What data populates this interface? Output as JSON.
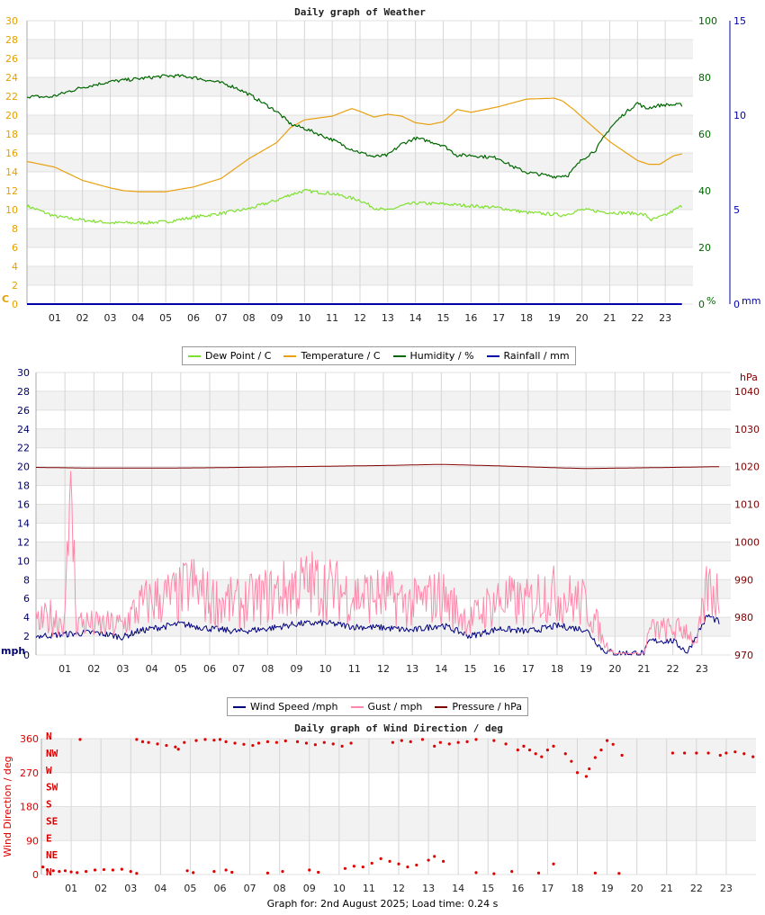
{
  "chart_data": [
    {
      "type": "line",
      "title": "Daily graph of Weather",
      "x_labels": [
        "01",
        "02",
        "03",
        "04",
        "05",
        "06",
        "07",
        "08",
        "09",
        "10",
        "11",
        "12",
        "13",
        "14",
        "15",
        "16",
        "17",
        "18",
        "19",
        "20",
        "21",
        "22",
        "23"
      ],
      "left_axis": {
        "unit_label": "C",
        "ticks": [
          0,
          2,
          4,
          6,
          8,
          10,
          12,
          14,
          16,
          18,
          20,
          22,
          24,
          26,
          28,
          30
        ],
        "range": [
          0,
          30
        ],
        "color": "#e6a000"
      },
      "right_axis_1": {
        "unit_label": "%",
        "ticks": [
          0,
          20,
          40,
          60,
          80,
          100
        ],
        "range": [
          0,
          100
        ],
        "color": "#006600"
      },
      "right_axis_2": {
        "unit_label": "mm",
        "ticks": [
          0,
          5,
          10,
          15
        ],
        "range": [
          0,
          15
        ],
        "color": "#0000aa"
      },
      "grid": true,
      "legend_position": "bottom",
      "series": [
        {
          "name": "Dew Point / C",
          "axis": "left",
          "color": "#7fe030",
          "x": [
            0,
            1,
            2,
            3,
            4,
            5,
            6,
            7,
            8,
            9,
            9.5,
            10,
            11,
            12,
            12.5,
            13,
            13.5,
            14,
            15,
            16,
            17,
            18,
            19,
            19.3,
            20,
            21,
            22,
            22.3,
            22.5,
            23,
            23.6
          ],
          "y": [
            10.4,
            9.3,
            8.9,
            8.6,
            8.6,
            8.7,
            9.2,
            9.6,
            10.1,
            11.0,
            11.6,
            12.0,
            11.7,
            11.0,
            10.2,
            9.9,
            10.4,
            10.7,
            10.6,
            10.4,
            10.2,
            9.7,
            9.5,
            9.4,
            10.0,
            9.7,
            9.6,
            9.4,
            8.9,
            9.4,
            10.4
          ]
        },
        {
          "name": "Temperature / C",
          "axis": "left",
          "color": "#e8a010",
          "x": [
            0,
            1,
            2,
            3,
            3.5,
            4,
            5,
            6,
            7,
            8,
            9,
            9.5,
            10,
            11,
            11.7,
            12,
            12.5,
            13,
            13.5,
            14,
            14.5,
            15,
            15.5,
            16,
            17,
            18,
            19,
            19.3,
            19.7,
            20,
            21,
            22,
            22.4,
            22.8,
            23.3,
            23.6
          ],
          "y": [
            15.1,
            14.5,
            13.1,
            12.3,
            12.0,
            11.9,
            11.9,
            12.4,
            13.3,
            15.4,
            17.1,
            18.7,
            19.5,
            19.9,
            20.7,
            20.4,
            19.8,
            20.1,
            19.9,
            19.2,
            19.0,
            19.3,
            20.6,
            20.3,
            20.9,
            21.7,
            21.8,
            21.5,
            20.6,
            19.8,
            17.2,
            15.2,
            14.8,
            14.8,
            15.7,
            15.9
          ]
        },
        {
          "name": "Humidity / %",
          "axis": "right1",
          "color": "#006600",
          "x": [
            0,
            0.8,
            1,
            2,
            3,
            4,
            5,
            5.5,
            6,
            7,
            7.5,
            8,
            9,
            9.5,
            10,
            11,
            11.5,
            12,
            12.5,
            13,
            13.5,
            14,
            14.5,
            15,
            15.5,
            16,
            17,
            17.5,
            18,
            19,
            19.5,
            20,
            20.5,
            21,
            21.5,
            22,
            22.3,
            22.7,
            23,
            23.6
          ],
          "y": [
            73.3,
            73.0,
            73.5,
            76.5,
            78.5,
            79.5,
            80.5,
            80.5,
            80.0,
            78.0,
            76.5,
            74.0,
            68.0,
            63.5,
            62.0,
            58.0,
            55.5,
            53.5,
            52.0,
            52.5,
            56.5,
            58.5,
            57.5,
            56.0,
            52.5,
            52.5,
            51.5,
            48.5,
            46.5,
            45.0,
            45.5,
            51.0,
            54.5,
            62.0,
            67.0,
            71.0,
            69.0,
            70.0,
            70.3,
            70.3
          ]
        },
        {
          "name": "Rainfall / mm",
          "axis": "right2",
          "color": "#0000aa",
          "x": [
            0,
            23.6
          ],
          "y": [
            0,
            0
          ]
        }
      ]
    },
    {
      "type": "line",
      "title": "",
      "x_labels": [
        "01",
        "02",
        "03",
        "04",
        "05",
        "06",
        "07",
        "08",
        "09",
        "10",
        "11",
        "12",
        "13",
        "14",
        "15",
        "16",
        "17",
        "18",
        "19",
        "20",
        "21",
        "22",
        "23"
      ],
      "left_axis": {
        "unit_label": "mph",
        "ticks": [
          0,
          2,
          4,
          6,
          8,
          10,
          12,
          14,
          16,
          18,
          20,
          22,
          24,
          26,
          28,
          30
        ],
        "range": [
          0,
          30
        ],
        "color": "#000066"
      },
      "right_axis": {
        "unit_label": "hPa",
        "ticks": [
          970,
          980,
          990,
          1000,
          1010,
          1020,
          1030,
          1040
        ],
        "range": [
          970,
          1045
        ],
        "color": "#800000"
      },
      "grid": true,
      "legend_position": "bottom",
      "series": [
        {
          "name": "Wind Speed /mph",
          "axis": "left",
          "color": "#000080",
          "x": [
            0,
            1,
            2,
            3,
            3.5,
            4,
            5,
            6,
            7,
            8,
            9,
            10,
            11,
            12,
            13,
            14,
            15,
            16,
            17,
            18,
            19,
            19.4,
            19.6,
            20,
            21,
            21.2,
            21.6,
            22,
            22.5,
            22.8,
            23.2,
            23.6
          ],
          "y": [
            2.0,
            2.2,
            2.4,
            1.9,
            2.5,
            2.8,
            3.3,
            2.8,
            2.5,
            2.8,
            3.3,
            3.4,
            3.0,
            2.9,
            2.6,
            3.2,
            2.0,
            2.8,
            2.5,
            3.1,
            2.7,
            1.2,
            0.5,
            0.2,
            0.2,
            1.5,
            1.5,
            1.5,
            0.3,
            2.0,
            4.2,
            3.5
          ]
        },
        {
          "name": "Gust / mph",
          "axis": "left",
          "color": "#ff88aa",
          "x": [
            0,
            0.5,
            1,
            1.2,
            1.4,
            2,
            3,
            3.5,
            4,
            5,
            5.3,
            6,
            7,
            8,
            9,
            9.5,
            10,
            11,
            12,
            13,
            14,
            14.6,
            15,
            15.5,
            16,
            17,
            17.5,
            18,
            19,
            19.4,
            19.6,
            20,
            21,
            21.2,
            22,
            22.5,
            22.8,
            23.2,
            23.6
          ],
          "y": [
            3.5,
            4.5,
            4.0,
            19.5,
            4.0,
            3.5,
            3.5,
            5.5,
            6.5,
            7.0,
            8.5,
            6.5,
            6.0,
            7.0,
            8.0,
            8.5,
            8.0,
            7.0,
            7.0,
            6.0,
            7.0,
            5.0,
            4.0,
            5.5,
            6.5,
            6.0,
            7.5,
            7.0,
            6.0,
            3.5,
            1.5,
            0.2,
            0.2,
            3.0,
            3.0,
            3.0,
            1.0,
            8.0,
            7.0
          ]
        },
        {
          "name": "Pressure / hPa",
          "axis": "right",
          "color": "#800000",
          "x": [
            0,
            2,
            4,
            6,
            8,
            10,
            12,
            14,
            15,
            16,
            18,
            19,
            20,
            22,
            23.6
          ],
          "y": [
            1019.8,
            1019.6,
            1019.6,
            1019.7,
            1019.9,
            1020.1,
            1020.3,
            1020.6,
            1020.4,
            1020.2,
            1019.7,
            1019.5,
            1019.6,
            1019.8,
            1020.0
          ]
        }
      ]
    },
    {
      "type": "scatter",
      "title": "Daily graph of Wind Direction / deg",
      "ylabel": "Wind Direction / deg",
      "x_labels": [
        "01",
        "02",
        "03",
        "04",
        "05",
        "06",
        "07",
        "08",
        "09",
        "10",
        "11",
        "12",
        "13",
        "14",
        "15",
        "16",
        "17",
        "18",
        "19",
        "20",
        "21",
        "22",
        "23"
      ],
      "y_ticks": [
        0,
        90,
        180,
        270,
        360
      ],
      "compass_labels": [
        "N",
        "NW",
        "W",
        "SW",
        "S",
        "SE",
        "E",
        "NE",
        "N"
      ],
      "range": [
        0,
        360
      ],
      "grid": true,
      "series": [
        {
          "name": "Wind Direction",
          "color": "#dd0000",
          "points": [
            [
              0.05,
              20
            ],
            [
              0.2,
              12
            ],
            [
              0.4,
              10
            ],
            [
              0.6,
              8
            ],
            [
              0.8,
              10
            ],
            [
              1.0,
              7
            ],
            [
              1.2,
              5
            ],
            [
              1.5,
              8
            ],
            [
              1.8,
              12
            ],
            [
              2.1,
              13
            ],
            [
              2.4,
              12
            ],
            [
              2.7,
              14
            ],
            [
              3.0,
              8
            ],
            [
              3.2,
              3
            ],
            [
              1.3,
              358
            ],
            [
              3.2,
              358
            ],
            [
              3.4,
              352
            ],
            [
              3.6,
              350
            ],
            [
              3.9,
              346
            ],
            [
              4.2,
              342
            ],
            [
              4.5,
              338
            ],
            [
              4.6,
              332
            ],
            [
              4.8,
              350
            ],
            [
              5.2,
              355
            ],
            [
              5.5,
              358
            ],
            [
              5.8,
              356
            ],
            [
              6.0,
              358
            ],
            [
              6.2,
              352
            ],
            [
              6.5,
              348
            ],
            [
              6.8,
              345
            ],
            [
              7.1,
              342
            ],
            [
              7.3,
              348
            ],
            [
              7.6,
              352
            ],
            [
              7.9,
              350
            ],
            [
              8.2,
              354
            ],
            [
              8.6,
              352
            ],
            [
              8.9,
              348
            ],
            [
              9.2,
              344
            ],
            [
              9.5,
              350
            ],
            [
              9.8,
              346
            ],
            [
              10.1,
              340
            ],
            [
              10.4,
              348
            ],
            [
              5.1,
              5
            ],
            [
              4.9,
              10
            ],
            [
              5.8,
              8
            ],
            [
              6.2,
              12
            ],
            [
              6.4,
              6
            ],
            [
              7.6,
              4
            ],
            [
              8.1,
              8
            ],
            [
              9.0,
              12
            ],
            [
              9.3,
              6
            ],
            [
              10.2,
              16
            ],
            [
              10.5,
              22
            ],
            [
              10.8,
              20
            ],
            [
              11.1,
              30
            ],
            [
              11.4,
              42
            ],
            [
              11.7,
              35
            ],
            [
              12.0,
              28
            ],
            [
              12.3,
              20
            ],
            [
              12.6,
              25
            ],
            [
              13.0,
              38
            ],
            [
              13.2,
              48
            ],
            [
              13.5,
              35
            ],
            [
              11.8,
              350
            ],
            [
              12.1,
              355
            ],
            [
              12.4,
              352
            ],
            [
              12.8,
              358
            ],
            [
              13.2,
              340
            ],
            [
              13.4,
              350
            ],
            [
              13.7,
              346
            ],
            [
              14.0,
              350
            ],
            [
              14.3,
              352
            ],
            [
              14.6,
              358
            ],
            [
              15.2,
              355
            ],
            [
              15.6,
              346
            ],
            [
              16.0,
              330
            ],
            [
              16.2,
              340
            ],
            [
              16.4,
              330
            ],
            [
              16.6,
              320
            ],
            [
              16.8,
              312
            ],
            [
              17.0,
              330
            ],
            [
              17.2,
              340
            ],
            [
              17.6,
              320
            ],
            [
              17.8,
              300
            ],
            [
              18.0,
              270
            ],
            [
              18.3,
              260
            ],
            [
              18.4,
              280
            ],
            [
              18.6,
              310
            ],
            [
              18.8,
              330
            ],
            [
              19.0,
              355
            ],
            [
              19.2,
              345
            ],
            [
              19.5,
              316
            ],
            [
              14.6,
              5
            ],
            [
              15.2,
              2
            ],
            [
              15.8,
              8
            ],
            [
              16.7,
              4
            ],
            [
              17.2,
              28
            ],
            [
              18.6,
              4
            ],
            [
              19.4,
              3
            ],
            [
              21.2,
              322
            ],
            [
              21.6,
              322
            ],
            [
              22.0,
              322
            ],
            [
              22.4,
              322
            ],
            [
              22.8,
              316
            ],
            [
              23.0,
              322
            ],
            [
              23.3,
              325
            ],
            [
              23.6,
              320
            ],
            [
              23.9,
              312
            ]
          ]
        }
      ]
    }
  ],
  "legend1": [
    "Dew Point / C",
    "Temperature / C",
    "Humidity / %",
    "Rainfall / mm"
  ],
  "legend2": [
    "Wind Speed /mph",
    "Gust / mph",
    "Pressure / hPa"
  ],
  "footer": "Graph for: 2nd August 2025; Load time: 0.24 s"
}
